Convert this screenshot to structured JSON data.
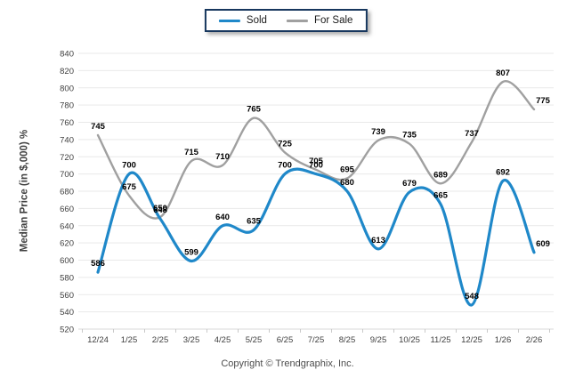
{
  "footer": {
    "copyright": "Copyright © Trendgraphix, Inc."
  },
  "chart_data": {
    "type": "line",
    "title": "",
    "categories": [
      "12/24",
      "1/25",
      "2/25",
      "3/25",
      "4/25",
      "5/25",
      "6/25",
      "7/25",
      "8/25",
      "9/25",
      "10/25",
      "11/25",
      "12/25",
      "1/26",
      "2/26"
    ],
    "series": [
      {
        "name": "Sold",
        "color": "#1f88c9",
        "stroke_width": 3.2,
        "values": [
          586,
          700,
          648,
          599,
          640,
          635,
          700,
          700,
          680,
          613,
          679,
          665,
          548,
          692,
          609
        ]
      },
      {
        "name": "For Sale",
        "color": "#a0a0a0",
        "stroke_width": 2.4,
        "values": [
          745,
          675,
          650,
          715,
          710,
          765,
          725,
          705,
          695,
          739,
          735,
          689,
          737,
          807,
          775
        ]
      }
    ],
    "ylabel": "Median Price (in $,000) %",
    "xlabel": "",
    "ylim": [
      520,
      840
    ],
    "ytick_step": 20,
    "yticks": [
      520,
      540,
      560,
      580,
      600,
      620,
      640,
      660,
      680,
      700,
      720,
      740,
      760,
      780,
      800,
      820,
      840
    ],
    "grid": "horizontal",
    "legend_position": "top-center",
    "point_labels": true,
    "colors": {
      "grid": "#e9e9e9",
      "axis": "#d9d9d9",
      "tick": "#c9c9c9",
      "tick_label": "#404040",
      "point_label": "#000000",
      "legend_border": "#17375e"
    }
  }
}
